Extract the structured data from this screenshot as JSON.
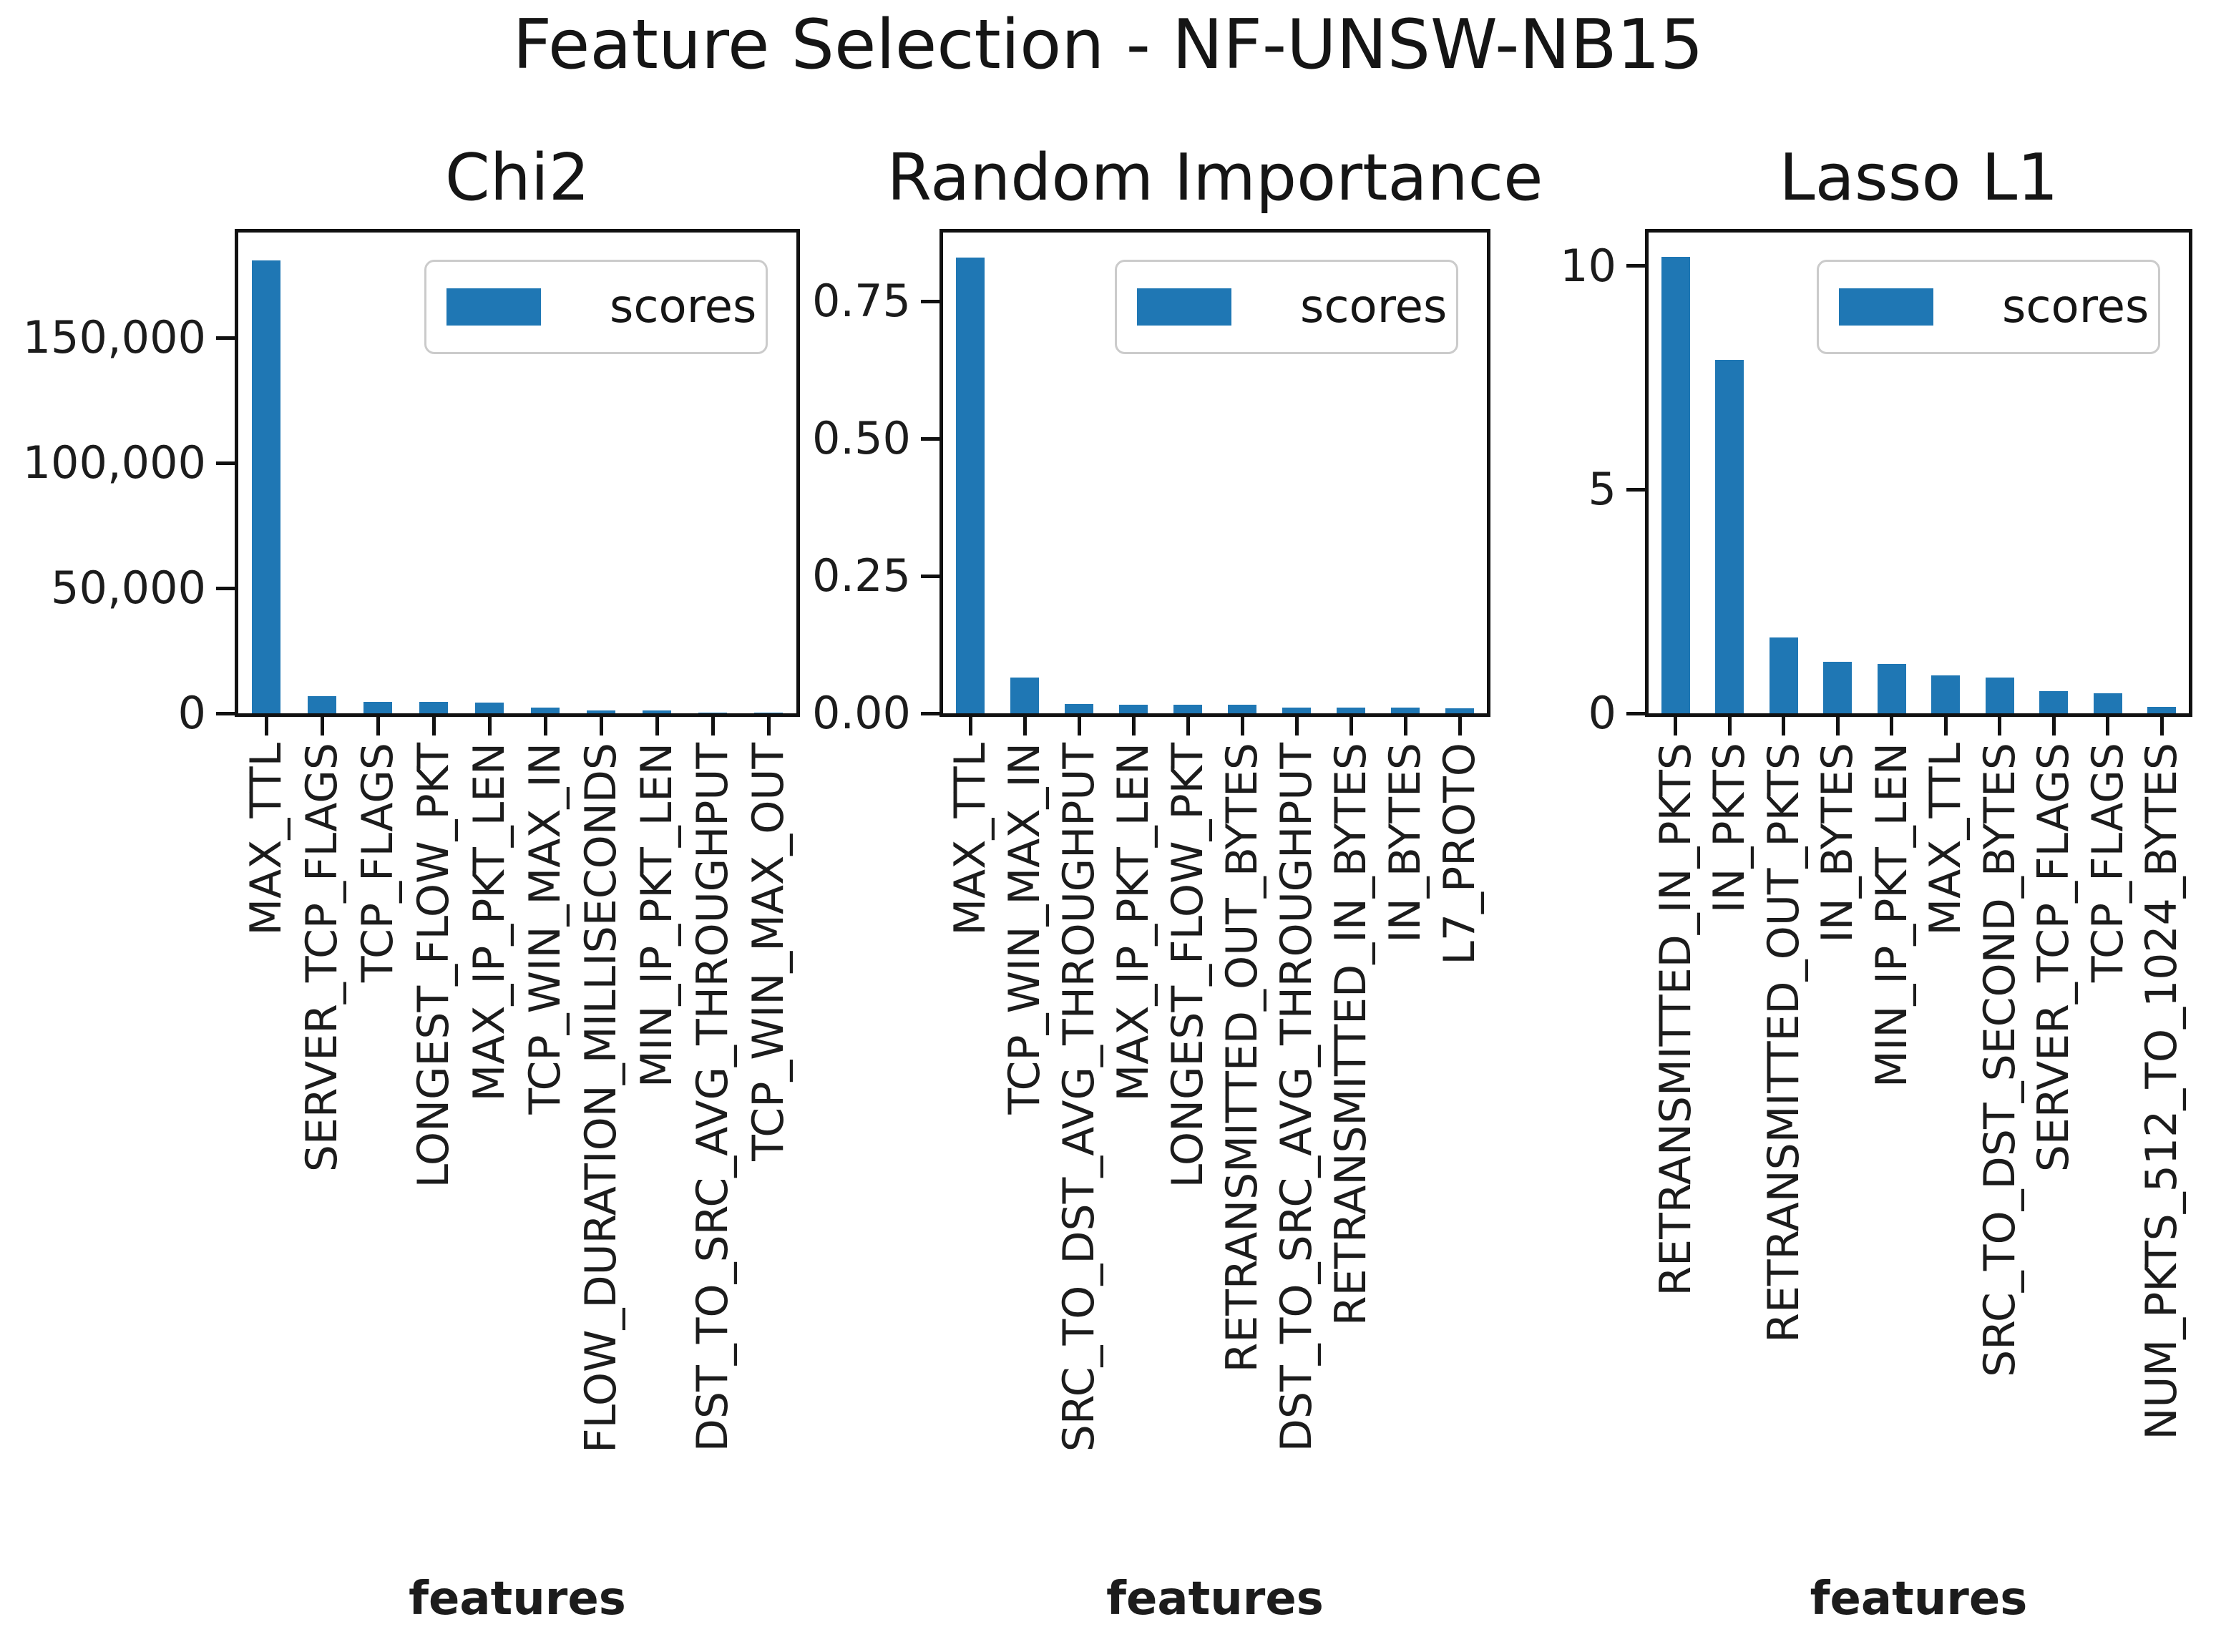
{
  "figure": {
    "title": "Feature Selection - NF-UNSW-NB15",
    "background": "#ffffff",
    "bar_color": "#1f77b4",
    "text_color": "#151515"
  },
  "chart_data": [
    {
      "type": "bar",
      "title": "Chi2",
      "xlabel": "features",
      "legend": "scores",
      "legend_position": "upper right",
      "grid": false,
      "ylim": [
        0,
        192000
      ],
      "yticks": [
        {
          "label": "0",
          "value": 0
        },
        {
          "label": "50,000",
          "value": 50000
        },
        {
          "label": "100,000",
          "value": 100000
        },
        {
          "label": "150,000",
          "value": 150000
        }
      ],
      "categories": [
        "MAX_TTL",
        "SERVER_TCP_FLAGS",
        "TCP_FLAGS",
        "LONGEST_FLOW_PKT",
        "MAX_IP_PKT_LEN",
        "TCP_WIN_MAX_IN",
        "FLOW_DURATION_MILLISECONDS",
        "MIN_IP_PKT_LEN",
        "DST_TO_SRC_AVG_THROUGHPUT",
        "TCP_WIN_MAX_OUT"
      ],
      "values": [
        181000,
        6800,
        4600,
        4500,
        4400,
        2400,
        1200,
        1100,
        300,
        250
      ]
    },
    {
      "type": "bar",
      "title": "Random Importance",
      "xlabel": "features",
      "legend": "scores",
      "legend_position": "upper right",
      "grid": false,
      "ylim": [
        0,
        0.875
      ],
      "yticks": [
        {
          "label": "0.00",
          "value": 0
        },
        {
          "label": "0.25",
          "value": 0.25
        },
        {
          "label": "0.50",
          "value": 0.5
        },
        {
          "label": "0.75",
          "value": 0.75
        }
      ],
      "categories": [
        "MAX_TTL",
        "TCP_WIN_MAX_IN",
        "SRC_TO_DST_AVG_THROUGHPUT",
        "MAX_IP_PKT_LEN",
        "LONGEST_FLOW_PKT",
        "RETRANSMITTED_OUT_BYTES",
        "DST_TO_SRC_AVG_THROUGHPUT",
        "RETRANSMITTED_IN_BYTES",
        "IN_BYTES",
        "L7_PROTO"
      ],
      "values": [
        0.83,
        0.065,
        0.017,
        0.016,
        0.016,
        0.015,
        0.011,
        0.01,
        0.01,
        0.009
      ]
    },
    {
      "type": "bar",
      "title": "Lasso L1",
      "xlabel": "features",
      "legend": "scores",
      "legend_position": "upper right",
      "grid": false,
      "ylim": [
        0,
        10.75
      ],
      "yticks": [
        {
          "label": "0",
          "value": 0
        },
        {
          "label": "5",
          "value": 5
        },
        {
          "label": "10",
          "value": 10
        }
      ],
      "categories": [
        "RETRANSMITTED_IN_PKTS",
        "IN_PKTS",
        "RETRANSMITTED_OUT_PKTS",
        "IN_BYTES",
        "MIN_IP_PKT_LEN",
        "MAX_TTL",
        "SRC_TO_DST_SECOND_BYTES",
        "SERVER_TCP_FLAGS",
        "TCP_FLAGS",
        "NUM_PKTS_512_TO_1024_BYTES"
      ],
      "values": [
        10.2,
        7.9,
        1.7,
        1.15,
        1.1,
        0.85,
        0.8,
        0.5,
        0.45,
        0.15
      ]
    }
  ]
}
